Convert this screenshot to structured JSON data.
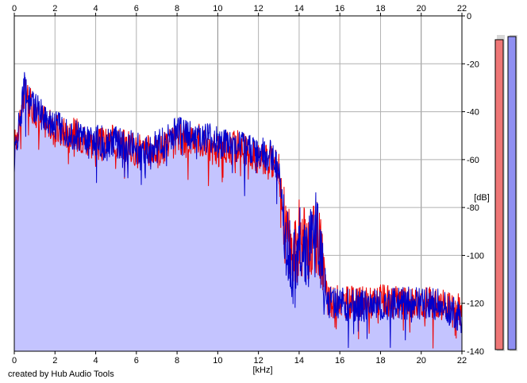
{
  "credit": "created by Hub Audio Tools",
  "chart_data": {
    "type": "area",
    "xlabel": "[kHz]",
    "ylabel": "[dB]",
    "xlim": [
      0,
      22
    ],
    "ylim": [
      -140,
      0
    ],
    "x_ticks": [
      0,
      2,
      4,
      6,
      8,
      10,
      12,
      14,
      16,
      18,
      20,
      22
    ],
    "y_ticks": [
      0,
      -20,
      -40,
      -60,
      -80,
      -100,
      -120,
      -140
    ],
    "grid": true,
    "fill_color": "#c4c4ff",
    "series": [
      {
        "color": "#ee0000",
        "x": [
          0,
          0.5,
          1,
          2,
          3,
          4,
          5,
          6,
          7,
          8,
          9,
          10,
          11,
          12,
          12.5,
          13,
          13.3,
          13.7,
          14,
          14.4,
          14.8,
          15.1,
          15.4,
          16,
          17,
          18,
          19,
          20,
          21,
          22
        ],
        "values": [
          -55,
          -32,
          -40,
          -48,
          -49,
          -54,
          -52,
          -56,
          -57,
          -52,
          -51,
          -57,
          -54,
          -60,
          -60,
          -64,
          -88,
          -102,
          -92,
          -97,
          -90,
          -97,
          -120,
          -119,
          -120,
          -119,
          -120,
          -119,
          -120,
          -123
        ]
      },
      {
        "color": "#0000cc",
        "x": [
          0,
          0.5,
          1,
          2,
          3,
          4,
          5,
          6,
          7,
          8,
          9,
          10,
          11,
          12,
          12.5,
          13,
          13.3,
          13.7,
          14,
          14.4,
          14.8,
          15.1,
          15.4,
          16,
          17,
          18,
          19,
          20,
          21,
          22
        ],
        "values": [
          -60,
          -30,
          -39,
          -45,
          -50,
          -52,
          -53,
          -55,
          -55,
          -49,
          -50,
          -53,
          -55,
          -57,
          -58,
          -62,
          -92,
          -105,
          -95,
          -100,
          -86,
          -102,
          -120,
          -120,
          -121,
          -121,
          -120,
          -120,
          -121,
          -126
        ]
      }
    ],
    "level_meters": [
      {
        "color": "#ee7777",
        "level": 0.98
      },
      {
        "color": "#8f8ff2",
        "level": 0.99
      }
    ]
  }
}
